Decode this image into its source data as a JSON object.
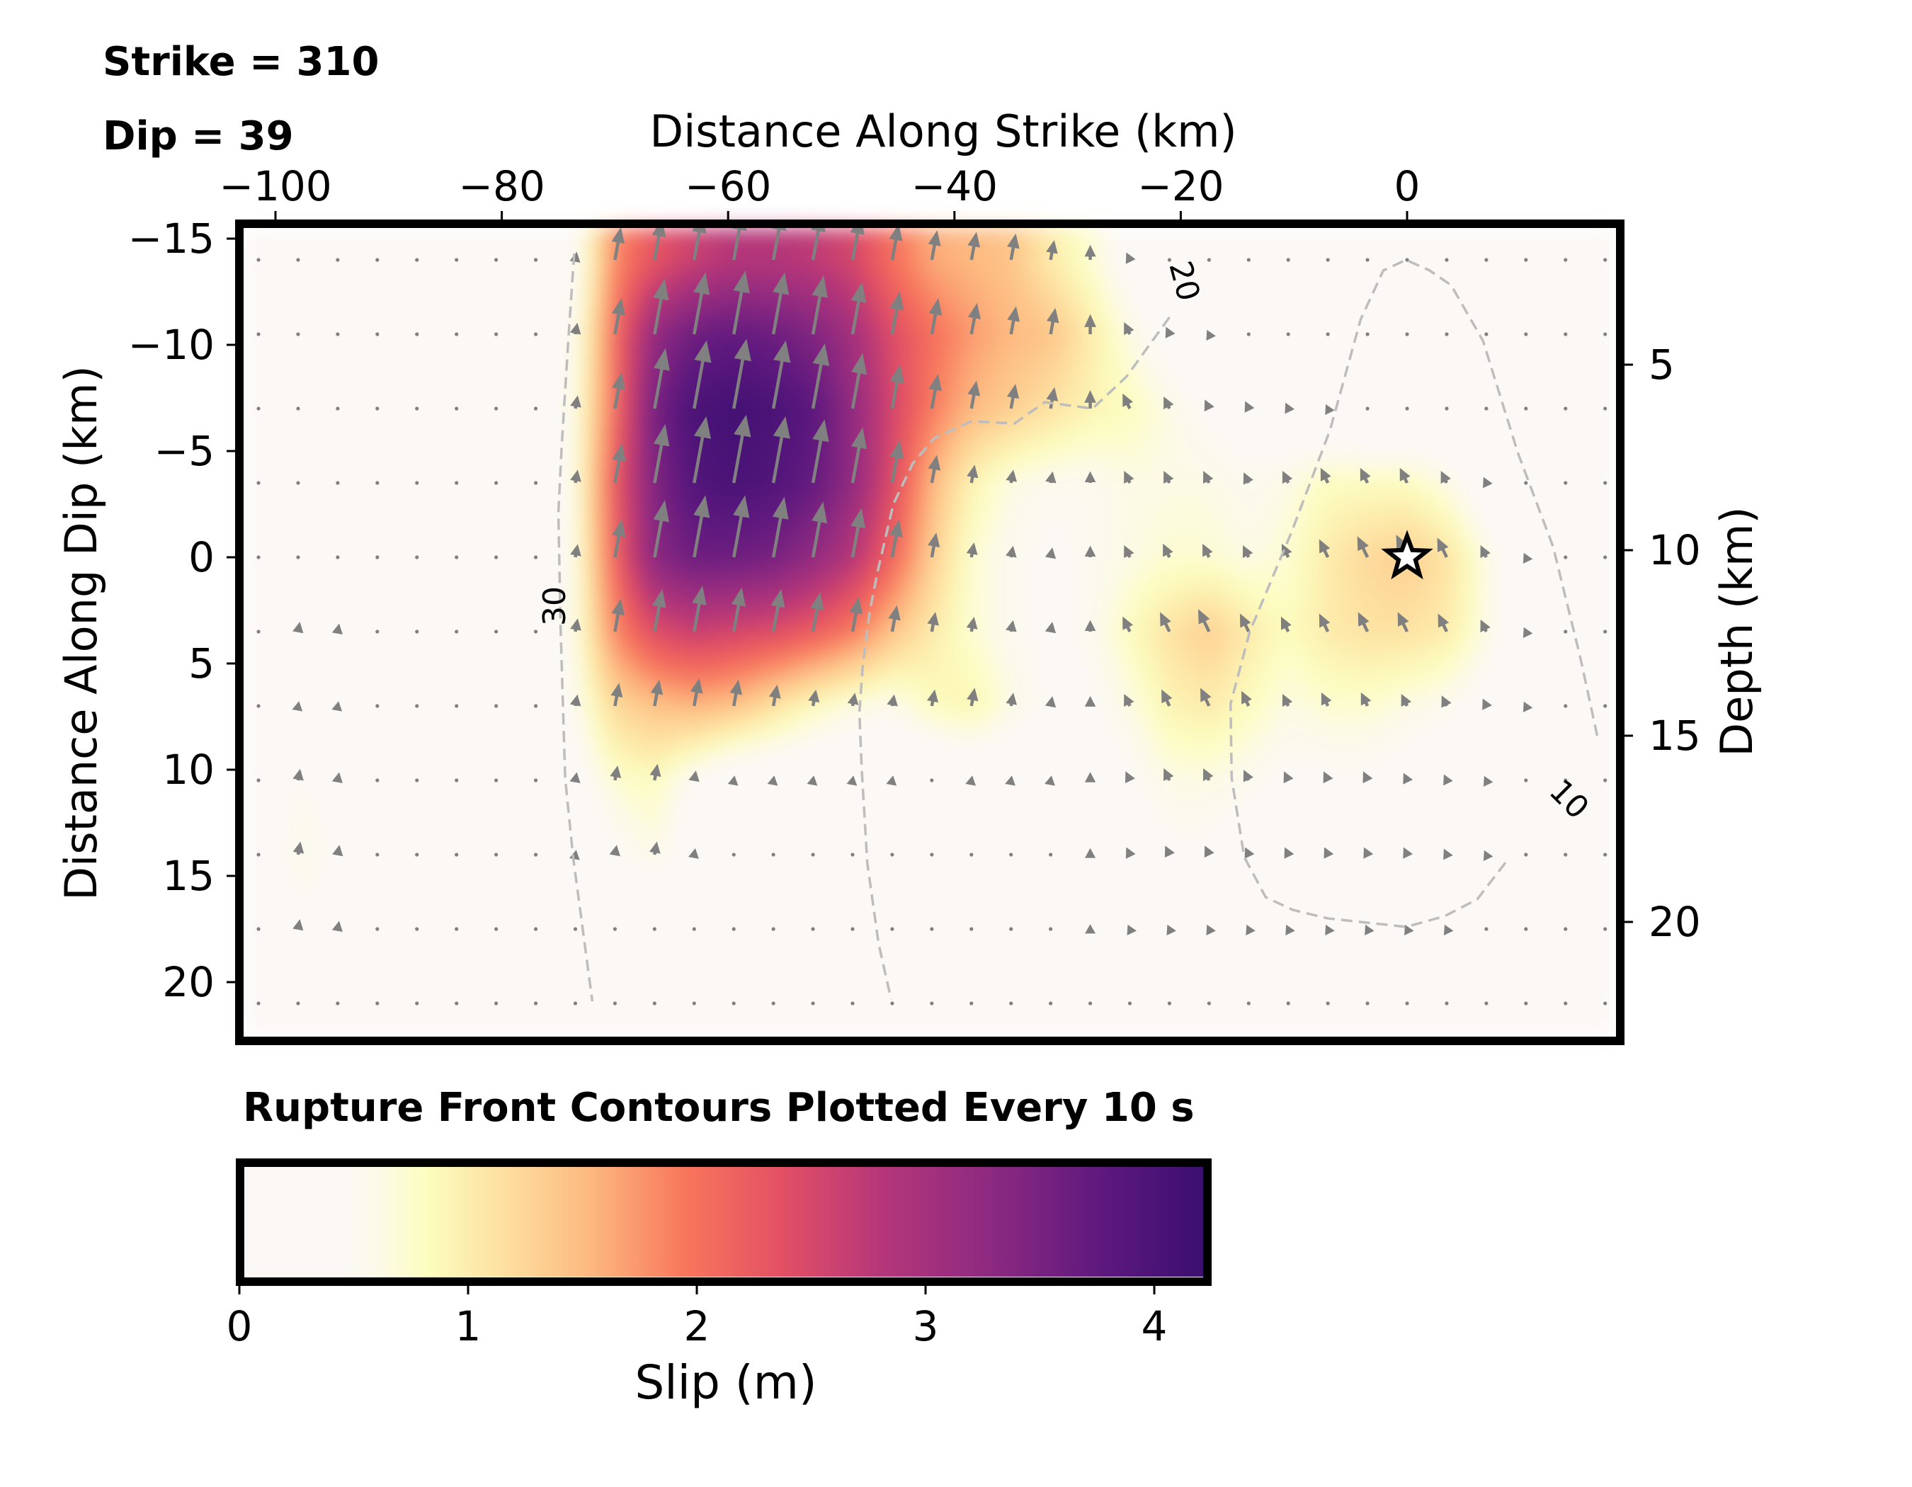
{
  "header": {
    "strike_label": "Strike = 310",
    "dip_label": "Dip = 39"
  },
  "axes": {
    "x_top_title": "Distance Along Strike (km)",
    "y_left_title": "Distance Along Dip (km)",
    "y_right_title": "Depth (km)",
    "x_ticks": [
      "−100",
      "−80",
      "−60",
      "−40",
      "−20",
      "0"
    ],
    "y_left_ticks": [
      "−15",
      "−10",
      "−5",
      "0",
      "5",
      "10",
      "15",
      "20"
    ],
    "y_right_ticks": [
      "5",
      "10",
      "15",
      "20"
    ]
  },
  "note": "Rupture Front Contours Plotted Every 10 s",
  "colorbar": {
    "label": "Slip (m)",
    "ticks": [
      "0",
      "1",
      "2",
      "3",
      "4"
    ],
    "colormap": "magma_r",
    "range": [
      0,
      4.2
    ]
  },
  "colors": {
    "frame": "#000000",
    "arrow": "#808080",
    "contour": "#bdbdbd",
    "background_low_slip": "#fcf8f6",
    "pale_yellow": "#fcfdbf",
    "orange": "#f8765c",
    "magenta": "#b73779",
    "deep_purple": "#3b0f70"
  },
  "chart_data": {
    "type": "heatmap",
    "title": "Strike = 310, Dip = 39",
    "xlabel": "Distance Along Strike (km)",
    "ylabel": "Distance Along Dip (km)",
    "y2label": "Depth (km)",
    "xlim": [
      -102.8,
      18.5
    ],
    "ylim": [
      22.6,
      -15.5
    ],
    "x_ticks": [
      -100,
      -80,
      -60,
      -40,
      -20,
      0
    ],
    "y_ticks": [
      -15,
      -10,
      -5,
      0,
      5,
      10,
      15,
      20
    ],
    "y2_ticks": [
      5,
      10,
      15,
      20
    ],
    "colorbar": {
      "label": "Slip (m)",
      "ticks": [
        0,
        1,
        2,
        3,
        4
      ],
      "range": [
        0,
        4.2
      ],
      "colormap": "magma_r"
    },
    "grid_x_km": [
      -101.5,
      -98,
      -94.5,
      -91,
      -87.5,
      -84,
      -80.5,
      -77,
      -73.5,
      -70,
      -66.5,
      -63,
      -59.5,
      -56,
      -52.5,
      -49,
      -45.5,
      -42,
      -38.5,
      -35,
      -31.5,
      -28,
      -24.5,
      -21,
      -17.5,
      -14,
      -10.5,
      -7,
      -3.5,
      0,
      3.5,
      7,
      10.5,
      14,
      17.5
    ],
    "grid_dip_km": [
      -14,
      -10.5,
      -7,
      -3.5,
      0,
      3.5,
      7,
      10.5,
      14,
      17.5,
      21
    ],
    "slip_m": [
      [
        0,
        0,
        0,
        0,
        0,
        0,
        0,
        0,
        0.3,
        1.8,
        2.3,
        2.6,
        2.8,
        2.8,
        2.7,
        2.5,
        2.0,
        1.6,
        1.5,
        1.4,
        1.0,
        0.7,
        0.3,
        0,
        0,
        0,
        0,
        0,
        0,
        0,
        0,
        0,
        0,
        0,
        0
      ],
      [
        0,
        0,
        0,
        0,
        0,
        0,
        0,
        0,
        0.5,
        2.0,
        3.2,
        3.6,
        3.7,
        3.6,
        3.4,
        3.0,
        2.4,
        2.0,
        1.7,
        1.5,
        1.4,
        1.0,
        0.6,
        0.3,
        0.1,
        0,
        0,
        0,
        0,
        0,
        0,
        0,
        0,
        0,
        0
      ],
      [
        0,
        0,
        0,
        0,
        0,
        0,
        0,
        0,
        0.6,
        2.0,
        3.5,
        4.0,
        4.1,
        4.0,
        3.8,
        3.2,
        2.5,
        1.9,
        1.5,
        1.3,
        1.1,
        0.9,
        0.8,
        0.6,
        0.4,
        0.3,
        0.2,
        0.1,
        0,
        0,
        0,
        0,
        0,
        0,
        0
      ],
      [
        0,
        0,
        0,
        0,
        0,
        0,
        0,
        0,
        0.6,
        2.2,
        3.4,
        3.9,
        4.0,
        3.9,
        3.7,
        3.2,
        2.4,
        1.5,
        0.9,
        0.6,
        0.5,
        0.5,
        0.6,
        0.6,
        0.6,
        0.5,
        0.6,
        0.8,
        0.8,
        0.8,
        0.6,
        0.2,
        0,
        0,
        0
      ],
      [
        0,
        0,
        0,
        0,
        0,
        0,
        0,
        0,
        0.6,
        2.1,
        3.3,
        3.6,
        3.6,
        3.5,
        3.2,
        2.8,
        2.1,
        1.3,
        0.7,
        0.5,
        0.4,
        0.5,
        0.6,
        0.7,
        0.7,
        0.6,
        0.7,
        1.0,
        1.2,
        1.3,
        1.1,
        0.6,
        0.1,
        0,
        0
      ],
      [
        0,
        0.4,
        0.3,
        0,
        0,
        0,
        0,
        0,
        0.6,
        1.8,
        2.4,
        2.6,
        2.5,
        2.4,
        2.2,
        1.9,
        1.4,
        1.0,
        0.7,
        0.5,
        0.4,
        0.5,
        0.8,
        1.1,
        1.3,
        1.0,
        0.8,
        1.0,
        1.1,
        1.1,
        1.0,
        0.6,
        0.1,
        0,
        0
      ],
      [
        0,
        0.1,
        0.1,
        0,
        0,
        0,
        0,
        0,
        0.5,
        1.2,
        1.4,
        1.5,
        1.4,
        1.1,
        0.8,
        0.6,
        0.5,
        0.8,
        0.9,
        0.6,
        0.4,
        0.4,
        0.6,
        0.9,
        1.0,
        0.8,
        0.6,
        0.7,
        0.7,
        0.6,
        0.5,
        0.3,
        0.1,
        0,
        0
      ],
      [
        0,
        0.5,
        0.3,
        0,
        0,
        0,
        0,
        0,
        0.3,
        0.7,
        0.8,
        0.4,
        0.1,
        0.1,
        0.1,
        0.1,
        0.1,
        0,
        0.1,
        0.1,
        0.1,
        0.3,
        0.4,
        0.6,
        0.6,
        0.5,
        0.4,
        0.4,
        0.4,
        0.3,
        0.2,
        0.1,
        0,
        0,
        0
      ],
      [
        0,
        0.6,
        0.4,
        0,
        0,
        0,
        0,
        0,
        0.1,
        0.4,
        0.6,
        0.2,
        0,
        0,
        0,
        0,
        0,
        0,
        0,
        0,
        0,
        0.2,
        0.3,
        0.4,
        0.4,
        0.3,
        0.3,
        0.3,
        0.3,
        0.3,
        0.2,
        0.1,
        0,
        0,
        0
      ],
      [
        0,
        0.4,
        0.3,
        0,
        0,
        0,
        0,
        0,
        0,
        0,
        0,
        0,
        0,
        0,
        0,
        0,
        0,
        0,
        0,
        0,
        0,
        0.1,
        0.1,
        0.1,
        0.1,
        0.1,
        0.1,
        0.1,
        0.1,
        0.1,
        0.1,
        0,
        0,
        0,
        0
      ],
      [
        0,
        0,
        0,
        0,
        0,
        0,
        0,
        0,
        0,
        0,
        0,
        0,
        0,
        0,
        0,
        0,
        0,
        0,
        0,
        0,
        0,
        0,
        0,
        0,
        0,
        0,
        0,
        0,
        0,
        0,
        0,
        0,
        0,
        0,
        0
      ]
    ],
    "rake_note": "Slip vectors point up-dip; tilted slightly along +strike west of -30 km and toward -strike east of -25 km",
    "hypocenter": {
      "x_km": 0,
      "dip_km": 0,
      "marker": "star"
    },
    "rupture_front_contours": [
      {
        "time_s": 10,
        "label_pos": [
          14.3,
          11.4
        ],
        "path_km": [
          [
            16.8,
            8.4
          ],
          [
            15.3,
            4.7
          ],
          [
            12.9,
            -0.5
          ],
          [
            9.8,
            -4.9
          ],
          [
            6.7,
            -10.2
          ],
          [
            3.9,
            -12.8
          ],
          [
            2.0,
            -13.5
          ],
          [
            -0.1,
            -14.0
          ],
          [
            -2.1,
            -13.5
          ],
          [
            -4.1,
            -11.2
          ],
          [
            -6.8,
            -6.0
          ],
          [
            -10.2,
            -1.2
          ],
          [
            -13.9,
            3.5
          ],
          [
            -15.6,
            6.9
          ],
          [
            -15.5,
            10.4
          ],
          [
            -14.4,
            14.1
          ],
          [
            -12.5,
            16.0
          ],
          [
            -10.1,
            16.6
          ],
          [
            -7.0,
            17.0
          ],
          [
            -0.1,
            17.4
          ],
          [
            3.3,
            16.9
          ],
          [
            6.2,
            16.1
          ],
          [
            8.8,
            14.3
          ]
        ]
      },
      {
        "time_s": 20,
        "label_pos": [
          -19.7,
          -13.0
        ],
        "path_km": [
          [
            -21.0,
            -11.3
          ],
          [
            -24.8,
            -8.5
          ],
          [
            -27.8,
            -7.0
          ],
          [
            -32.0,
            -7.3
          ],
          [
            -34.7,
            -6.3
          ],
          [
            -38.5,
            -6.4
          ],
          [
            -41.8,
            -5.6
          ],
          [
            -43.7,
            -4.4
          ],
          [
            -45.4,
            -2.5
          ],
          [
            -46.8,
            0.7
          ],
          [
            -47.5,
            2.6
          ],
          [
            -48.1,
            5.1
          ],
          [
            -48.4,
            7.3
          ],
          [
            -48.2,
            9.9
          ],
          [
            -47.7,
            14.4
          ],
          [
            -46.7,
            18.2
          ],
          [
            -45.6,
            20.8
          ]
        ]
      },
      {
        "time_s": 30,
        "label_pos": [
          -75.3,
          2.3
        ],
        "path_km": [
          [
            -73.6,
            -14.3
          ],
          [
            -74.1,
            -10.4
          ],
          [
            -74.7,
            -5.3
          ],
          [
            -75.0,
            -2.1
          ],
          [
            -74.8,
            3.4
          ],
          [
            -74.4,
            10.4
          ],
          [
            -73.7,
            14.1
          ],
          [
            -73.1,
            16.5
          ],
          [
            -72.0,
            20.9
          ]
        ]
      }
    ]
  }
}
